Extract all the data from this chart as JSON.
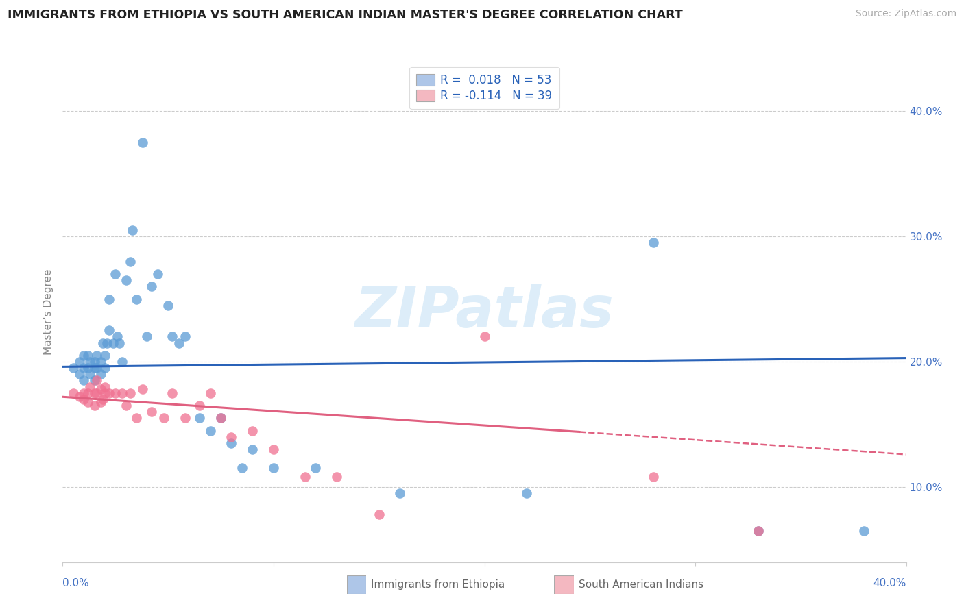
{
  "title": "IMMIGRANTS FROM ETHIOPIA VS SOUTH AMERICAN INDIAN MASTER'S DEGREE CORRELATION CHART",
  "source": "Source: ZipAtlas.com",
  "ylabel": "Master's Degree",
  "ytick_labels": [
    "10.0%",
    "20.0%",
    "30.0%",
    "40.0%"
  ],
  "ytick_values": [
    0.1,
    0.2,
    0.3,
    0.4
  ],
  "xlim": [
    0.0,
    0.4
  ],
  "ylim": [
    0.04,
    0.44
  ],
  "legend1_label": "R =  0.018   N = 53",
  "legend2_label": "R = -0.114   N = 39",
  "legend_ethiopia_color": "#aec6e8",
  "legend_south_color": "#f4b8c1",
  "ethiopia_color": "#5b9bd5",
  "south_color": "#f07090",
  "watermark": "ZIPatlas",
  "blue_line_x0": 0.0,
  "blue_line_y0": 0.196,
  "blue_line_x1": 0.4,
  "blue_line_y1": 0.203,
  "pink_line_x0": 0.0,
  "pink_line_y0": 0.172,
  "pink_line_x1_solid": 0.245,
  "pink_line_y1_solid": 0.144,
  "pink_line_x1_dash": 0.4,
  "pink_line_y1_dash": 0.126,
  "ethiopia_x": [
    0.005,
    0.008,
    0.008,
    0.01,
    0.01,
    0.01,
    0.012,
    0.012,
    0.013,
    0.013,
    0.015,
    0.015,
    0.015,
    0.016,
    0.016,
    0.018,
    0.018,
    0.019,
    0.02,
    0.02,
    0.021,
    0.022,
    0.022,
    0.024,
    0.025,
    0.026,
    0.027,
    0.028,
    0.03,
    0.032,
    0.033,
    0.035,
    0.038,
    0.04,
    0.042,
    0.045,
    0.05,
    0.052,
    0.055,
    0.058,
    0.065,
    0.07,
    0.075,
    0.08,
    0.085,
    0.09,
    0.1,
    0.12,
    0.16,
    0.22,
    0.28,
    0.33,
    0.38
  ],
  "ethiopia_y": [
    0.195,
    0.19,
    0.2,
    0.185,
    0.195,
    0.205,
    0.195,
    0.205,
    0.19,
    0.2,
    0.185,
    0.195,
    0.2,
    0.195,
    0.205,
    0.19,
    0.2,
    0.215,
    0.195,
    0.205,
    0.215,
    0.225,
    0.25,
    0.215,
    0.27,
    0.22,
    0.215,
    0.2,
    0.265,
    0.28,
    0.305,
    0.25,
    0.375,
    0.22,
    0.26,
    0.27,
    0.245,
    0.22,
    0.215,
    0.22,
    0.155,
    0.145,
    0.155,
    0.135,
    0.115,
    0.13,
    0.115,
    0.115,
    0.095,
    0.095,
    0.295,
    0.065,
    0.065
  ],
  "south_x": [
    0.005,
    0.008,
    0.01,
    0.01,
    0.012,
    0.012,
    0.013,
    0.015,
    0.015,
    0.016,
    0.016,
    0.018,
    0.018,
    0.019,
    0.02,
    0.02,
    0.022,
    0.025,
    0.028,
    0.03,
    0.032,
    0.035,
    0.038,
    0.042,
    0.048,
    0.052,
    0.058,
    0.065,
    0.07,
    0.075,
    0.08,
    0.09,
    0.1,
    0.115,
    0.13,
    0.15,
    0.2,
    0.28,
    0.33
  ],
  "south_y": [
    0.175,
    0.172,
    0.17,
    0.175,
    0.168,
    0.175,
    0.18,
    0.165,
    0.175,
    0.175,
    0.185,
    0.168,
    0.178,
    0.17,
    0.175,
    0.18,
    0.175,
    0.175,
    0.175,
    0.165,
    0.175,
    0.155,
    0.178,
    0.16,
    0.155,
    0.175,
    0.155,
    0.165,
    0.175,
    0.155,
    0.14,
    0.145,
    0.13,
    0.108,
    0.108,
    0.078,
    0.22,
    0.108,
    0.065
  ],
  "bottom_label1": "Immigrants from Ethiopia",
  "bottom_label2": "South American Indians"
}
